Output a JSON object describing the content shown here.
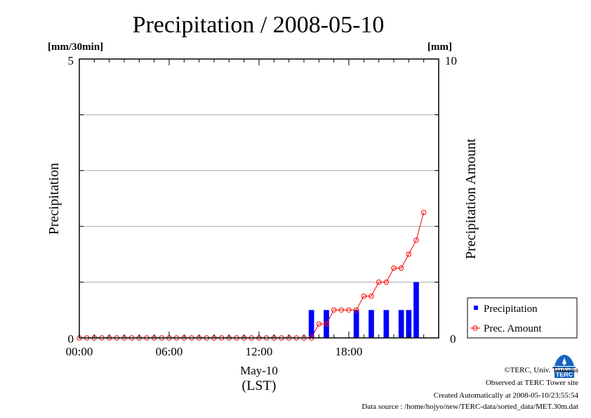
{
  "chart_data": {
    "type": "bar",
    "title": "Precipitation / 2008-05-10",
    "ylabel_left": "Precipitation",
    "ylabel_right": "Precipitation Amount",
    "unit_left": "[mm/30min]",
    "unit_right": "[mm]",
    "xlabel_date": "May-10",
    "xlabel_zone": "(LST)",
    "ylim_left": [
      0,
      5
    ],
    "ylim_right": [
      0,
      10
    ],
    "yticks_left": [
      "0",
      "5"
    ],
    "yticks_right": [
      "0",
      "10"
    ],
    "xlim_hours": [
      0,
      24
    ],
    "xticks": [
      {
        "hour": 0,
        "label": "00:00"
      },
      {
        "hour": 6,
        "label": "06:00"
      },
      {
        "hour": 12,
        "label": "12:00"
      },
      {
        "hour": 18,
        "label": "18:00"
      }
    ],
    "grid": "horizontal",
    "legend_position": "right",
    "series": [
      {
        "name": "Precipitation",
        "kind": "bar",
        "color": "#0000ff",
        "axis": "left",
        "points": [
          {
            "t": "15:30",
            "v": 0.5
          },
          {
            "t": "16:30",
            "v": 0.5
          },
          {
            "t": "18:30",
            "v": 0.5
          },
          {
            "t": "19:30",
            "v": 0.5
          },
          {
            "t": "20:30",
            "v": 0.5
          },
          {
            "t": "21:30",
            "v": 0.5
          },
          {
            "t": "22:00",
            "v": 0.5
          },
          {
            "t": "22:30",
            "v": 1.0
          }
        ]
      },
      {
        "name": "Prec. Amount",
        "kind": "line",
        "color": "#ff0000",
        "axis": "right",
        "points": [
          {
            "t": "00:00",
            "v": 0
          },
          {
            "t": "00:30",
            "v": 0
          },
          {
            "t": "01:00",
            "v": 0
          },
          {
            "t": "01:30",
            "v": 0
          },
          {
            "t": "02:00",
            "v": 0
          },
          {
            "t": "02:30",
            "v": 0
          },
          {
            "t": "03:00",
            "v": 0
          },
          {
            "t": "03:30",
            "v": 0
          },
          {
            "t": "04:00",
            "v": 0
          },
          {
            "t": "04:30",
            "v": 0
          },
          {
            "t": "05:00",
            "v": 0
          },
          {
            "t": "05:30",
            "v": 0
          },
          {
            "t": "06:00",
            "v": 0
          },
          {
            "t": "06:30",
            "v": 0
          },
          {
            "t": "07:00",
            "v": 0
          },
          {
            "t": "07:30",
            "v": 0
          },
          {
            "t": "08:00",
            "v": 0
          },
          {
            "t": "08:30",
            "v": 0
          },
          {
            "t": "09:00",
            "v": 0
          },
          {
            "t": "09:30",
            "v": 0
          },
          {
            "t": "10:00",
            "v": 0
          },
          {
            "t": "10:30",
            "v": 0
          },
          {
            "t": "11:00",
            "v": 0
          },
          {
            "t": "11:30",
            "v": 0
          },
          {
            "t": "12:00",
            "v": 0
          },
          {
            "t": "12:30",
            "v": 0
          },
          {
            "t": "13:00",
            "v": 0
          },
          {
            "t": "13:30",
            "v": 0
          },
          {
            "t": "14:00",
            "v": 0
          },
          {
            "t": "14:30",
            "v": 0
          },
          {
            "t": "15:00",
            "v": 0
          },
          {
            "t": "15:30",
            "v": 0
          },
          {
            "t": "16:00",
            "v": 0.5
          },
          {
            "t": "16:30",
            "v": 0.5
          },
          {
            "t": "17:00",
            "v": 1.0
          },
          {
            "t": "17:30",
            "v": 1.0
          },
          {
            "t": "18:00",
            "v": 1.0
          },
          {
            "t": "18:30",
            "v": 1.0
          },
          {
            "t": "19:00",
            "v": 1.5
          },
          {
            "t": "19:30",
            "v": 1.5
          },
          {
            "t": "20:00",
            "v": 2.0
          },
          {
            "t": "20:30",
            "v": 2.0
          },
          {
            "t": "21:00",
            "v": 2.5
          },
          {
            "t": "21:30",
            "v": 2.5
          },
          {
            "t": "22:00",
            "v": 3.0
          },
          {
            "t": "22:30",
            "v": 3.5
          },
          {
            "t": "23:00",
            "v": 4.5
          }
        ]
      }
    ]
  },
  "footer": {
    "copyright": "©TERC, Univ. Tsukuba",
    "observed": "Observed at TERC Tower site",
    "created": "Created Automatically at 2008-05-10/23:55:54",
    "source": "Data source : /home/hojyo/new/TERC-data/sorted_data/MET.30m.dat"
  },
  "logo": {
    "text": "TERC",
    "color": "#1565c0"
  }
}
